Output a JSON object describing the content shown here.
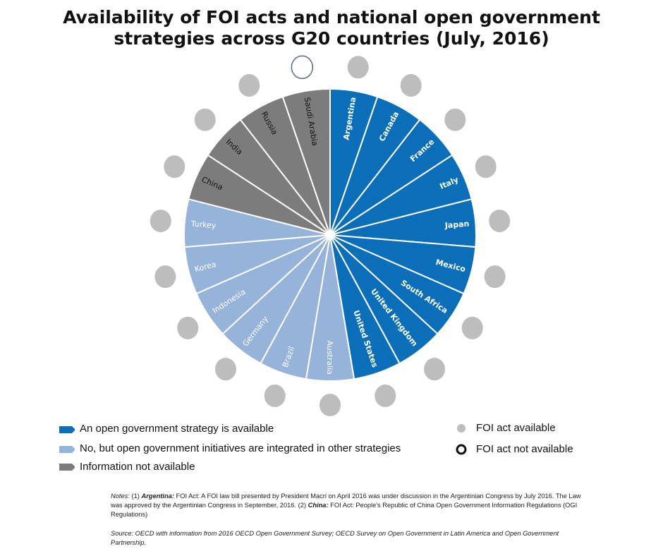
{
  "title_lines": [
    "Availability of FOI acts and national open government",
    "strategies across G20  countries (July, 2016)"
  ],
  "colors": {
    "strategy": "#0a6eb8",
    "integrated": "#96b3d9",
    "not_available": "#7c7c7c",
    "foi_yes": "#bdbdbd",
    "foi_no_stroke": "#5a6b74"
  },
  "chart_data": {
    "type": "pie",
    "title": "Availability of FOI acts and national open government strategies across G20  countries (July, 2016)",
    "categories": [
      "Argentina",
      "Canada",
      "France",
      "Italy",
      "Japan",
      "Mexico",
      "South Africa",
      "United Kingdom",
      "United States",
      "Australia",
      "Brazil",
      "Germany",
      "Indonesia",
      "Korea",
      "Turkey",
      "China",
      "India",
      "Russia",
      "Saudi Arabia"
    ],
    "strategy_status": [
      "strategy",
      "strategy",
      "strategy",
      "strategy",
      "strategy",
      "strategy",
      "strategy",
      "strategy",
      "strategy",
      "integrated",
      "integrated",
      "integrated",
      "integrated",
      "integrated",
      "integrated",
      "not_available",
      "not_available",
      "not_available",
      "not_available"
    ],
    "foi_act_available": [
      true,
      true,
      true,
      true,
      true,
      true,
      true,
      true,
      true,
      true,
      true,
      true,
      true,
      true,
      true,
      true,
      true,
      true,
      false
    ],
    "values": [
      1,
      1,
      1,
      1,
      1,
      1,
      1,
      1,
      1,
      1,
      1,
      1,
      1,
      1,
      1,
      1,
      1,
      1,
      1
    ]
  },
  "legend": {
    "strategy": "An open government strategy is available",
    "integrated": "No, but open government initiatives are integrated in other strategies",
    "not_available": "Information not available",
    "foi_yes": "FOI act available",
    "foi_no": "FOI act not available"
  },
  "notes": {
    "label": "Notes:",
    "n1": "(1)",
    "argentina_label": "Argentina:",
    "argentina_text": "FOI Act: A FOI law bill presented by President Macri on April 2016 was under discussion in the Argentinian Congress by July 2016.  The Law was approved by the Argentinian Congress in September, 2016.",
    "n2": "(2)",
    "china_label": "China:",
    "china_text": "FOI Act: People's Republic of China Open Government Information Regulations (OGI Regulations)",
    "source": "Source: OECD with information from 2016 OECD Open Government Survey; OECD Survey on Open Government in Latin America and Open Government Partnership."
  }
}
